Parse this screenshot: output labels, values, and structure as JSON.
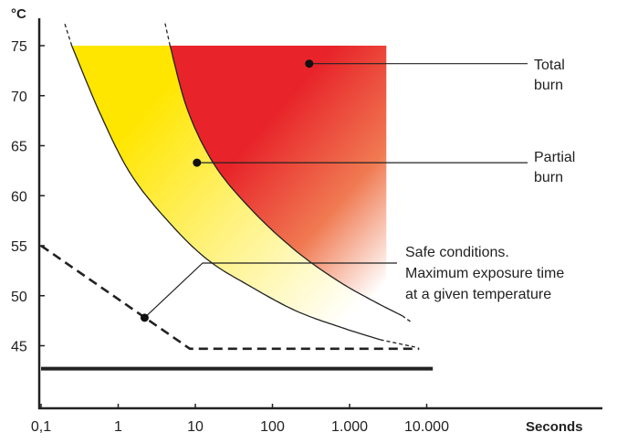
{
  "chart_data": {
    "type": "area",
    "title": "",
    "ylabel": "°C",
    "xlabel": "Seconds",
    "x_scale": "log",
    "xlim": [
      0.1,
      10000
    ],
    "ylim": [
      40.3,
      78
    ],
    "x_ticks": [
      0.1,
      1,
      10,
      100,
      1000,
      10000
    ],
    "x_tick_labels": [
      "0,1",
      "1",
      "10",
      "100",
      "1.000",
      "10.000"
    ],
    "y_ticks": [
      45,
      50,
      55,
      60,
      65,
      70,
      75
    ],
    "y_tick_labels": [
      "45",
      "50",
      "55",
      "60",
      "65",
      "70",
      "75"
    ],
    "grid": false,
    "series": [
      {
        "name": "Partial burn",
        "kind": "band",
        "color": "#ffe600",
        "lower_boundary": [
          [
            0.25,
            75
          ],
          [
            0.6,
            68
          ],
          [
            1.5,
            62
          ],
          [
            5,
            57
          ],
          [
            15,
            53.5
          ],
          [
            50,
            51
          ],
          [
            200,
            48.5
          ],
          [
            800,
            46.8
          ],
          [
            2500,
            45.6
          ]
        ],
        "upper_boundary": [
          [
            4.7,
            75
          ],
          [
            8,
            68.5
          ],
          [
            18,
            63
          ],
          [
            55,
            58.5
          ],
          [
            200,
            54.5
          ],
          [
            700,
            51.5
          ],
          [
            2000,
            49.5
          ],
          [
            4800,
            48
          ]
        ]
      },
      {
        "name": "Total burn",
        "kind": "region",
        "color": "#e8242a",
        "left_boundary": [
          [
            4.7,
            75
          ],
          [
            8,
            68.5
          ],
          [
            18,
            63
          ],
          [
            55,
            58.5
          ],
          [
            200,
            54.5
          ],
          [
            700,
            51.5
          ],
          [
            2000,
            49.5
          ],
          [
            3000,
            48.8
          ]
        ],
        "right_x": 3000,
        "top_y": 75
      },
      {
        "name": "Safe conditions. Maximum exposure time at a given temperature",
        "kind": "dashed-line",
        "color": "#222222",
        "values": [
          [
            0.1,
            55
          ],
          [
            8.5,
            44.7
          ],
          [
            8000,
            44.7
          ]
        ]
      }
    ],
    "reference_line": {
      "y": 42.7,
      "x_range": [
        0.1,
        12000
      ]
    },
    "annotations": [
      {
        "text_lines": [
          "Total",
          "burn"
        ],
        "point": [
          300,
          73.2
        ]
      },
      {
        "text_lines": [
          "Partial",
          "burn"
        ],
        "point": [
          10.5,
          63.3
        ]
      },
      {
        "text_lines": [
          "Safe conditions.",
          "Maximum exposure time",
          "at a given temperature"
        ],
        "point": [
          2.2,
          47.8
        ]
      }
    ]
  }
}
